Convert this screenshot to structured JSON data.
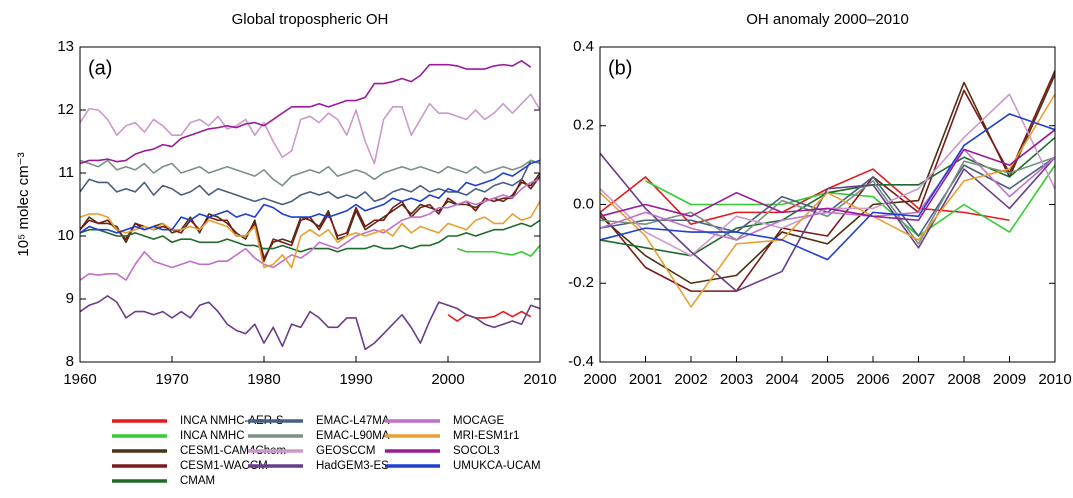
{
  "chart_data": [
    {
      "type": "line",
      "title": "Global tropospheric OH",
      "panel_label": "(a)",
      "y_label": "10⁵ molec cm⁻³",
      "x": [
        1960,
        1961,
        1962,
        1963,
        1964,
        1965,
        1966,
        1967,
        1968,
        1969,
        1970,
        1971,
        1972,
        1973,
        1974,
        1975,
        1976,
        1977,
        1978,
        1979,
        1980,
        1981,
        1982,
        1983,
        1984,
        1985,
        1986,
        1987,
        1988,
        1989,
        1990,
        1991,
        1992,
        1993,
        1994,
        1995,
        1996,
        1997,
        1998,
        1999,
        2000,
        2001,
        2002,
        2003,
        2004,
        2005,
        2006,
        2007,
        2008,
        2009,
        2010
      ],
      "xlim": [
        1960,
        2010
      ],
      "xticks": [
        1960,
        1970,
        1980,
        1990,
        2000,
        2010
      ],
      "ylim": [
        8,
        13
      ],
      "yticks": [
        8,
        9,
        10,
        11,
        12,
        13
      ],
      "series": [
        {
          "name": "INCA NMHC-AER-S",
          "color": "#e41a1c",
          "values": [
            null,
            null,
            null,
            null,
            null,
            null,
            null,
            null,
            null,
            null,
            null,
            null,
            null,
            null,
            null,
            null,
            null,
            null,
            null,
            null,
            null,
            null,
            null,
            null,
            null,
            null,
            null,
            null,
            null,
            null,
            null,
            null,
            null,
            null,
            null,
            null,
            null,
            null,
            null,
            null,
            8.75,
            8.65,
            8.75,
            8.7,
            8.7,
            8.72,
            8.8,
            8.72,
            8.8,
            8.72,
            null
          ]
        },
        {
          "name": "INCA NMHC",
          "color": "#33cc33",
          "values": [
            null,
            null,
            null,
            null,
            null,
            null,
            null,
            null,
            null,
            null,
            null,
            null,
            null,
            null,
            null,
            null,
            null,
            null,
            null,
            null,
            null,
            null,
            null,
            null,
            null,
            null,
            null,
            null,
            null,
            null,
            null,
            null,
            null,
            null,
            null,
            null,
            null,
            null,
            null,
            null,
            null,
            9.8,
            9.75,
            9.75,
            9.75,
            9.75,
            9.72,
            9.7,
            9.75,
            9.68,
            9.85
          ]
        },
        {
          "name": "CESM1-CAM4Chem",
          "color": "#4a3212",
          "values": [
            10.1,
            10.3,
            10.2,
            10.2,
            10.15,
            9.9,
            10.2,
            10.1,
            10.15,
            10.2,
            10.05,
            10.1,
            10.3,
            10.05,
            10.35,
            10.3,
            10.2,
            10.05,
            9.95,
            10.25,
            9.65,
            9.9,
            9.95,
            9.9,
            10.3,
            10.25,
            10.15,
            10.4,
            9.95,
            10.0,
            10.4,
            10.1,
            10.2,
            10.3,
            10.4,
            10.5,
            10.35,
            10.5,
            10.45,
            10.4,
            10.55,
            10.5,
            10.5,
            10.45,
            10.55,
            10.6,
            10.55,
            10.65,
            10.85,
            10.8,
            11.0
          ]
        },
        {
          "name": "CESM1-WACCM",
          "color": "#7a1a1a",
          "values": [
            10.1,
            10.25,
            10.2,
            10.25,
            10.1,
            9.95,
            10.2,
            10.15,
            10.1,
            10.15,
            10.1,
            10.05,
            10.25,
            10.1,
            10.3,
            10.25,
            10.25,
            10.0,
            10.0,
            10.2,
            9.6,
            9.95,
            9.9,
            9.85,
            10.25,
            10.3,
            10.1,
            10.35,
            10.0,
            10.05,
            10.45,
            10.15,
            10.25,
            10.25,
            10.45,
            10.55,
            10.3,
            10.45,
            10.5,
            10.35,
            10.6,
            10.5,
            10.55,
            10.4,
            10.6,
            10.55,
            10.6,
            10.6,
            10.9,
            10.75,
            10.95
          ]
        },
        {
          "name": "CMAM",
          "color": "#1e6b2a",
          "values": [
            10.05,
            10.1,
            10.1,
            10.05,
            10.0,
            10.0,
            10.05,
            10.0,
            9.95,
            10.0,
            9.9,
            9.95,
            9.95,
            9.9,
            9.9,
            9.9,
            9.95,
            9.9,
            9.85,
            9.85,
            9.8,
            9.8,
            9.85,
            9.8,
            9.75,
            9.8,
            9.8,
            9.8,
            9.75,
            9.8,
            9.8,
            9.8,
            9.85,
            9.8,
            9.8,
            9.85,
            9.8,
            9.85,
            9.85,
            9.9,
            10.0,
            10.0,
            10.05,
            10.0,
            10.05,
            10.1,
            10.1,
            10.15,
            10.2,
            10.15,
            10.25
          ]
        },
        {
          "name": "EMAC-L47MA",
          "color": "#4a5f80",
          "values": [
            10.7,
            10.9,
            10.85,
            10.85,
            10.7,
            10.75,
            10.7,
            10.85,
            10.65,
            10.8,
            10.75,
            10.65,
            10.7,
            10.8,
            10.65,
            10.75,
            10.7,
            10.65,
            10.6,
            10.55,
            10.6,
            10.55,
            10.5,
            10.55,
            10.65,
            10.7,
            10.65,
            10.7,
            10.6,
            10.65,
            10.6,
            10.7,
            10.55,
            10.6,
            10.7,
            10.75,
            10.7,
            10.8,
            10.7,
            10.75,
            10.7,
            10.7,
            10.65,
            10.75,
            10.7,
            10.8,
            10.85,
            10.8,
            10.9,
            11.2,
            11.15
          ]
        },
        {
          "name": "EMAC-L90MA",
          "color": "#7a9282",
          "values": [
            11.2,
            11.15,
            11.1,
            11.2,
            11.05,
            11.1,
            11.05,
            11.15,
            11.0,
            11.1,
            11.15,
            11.0,
            11.05,
            11.1,
            11.0,
            11.05,
            11.1,
            11.05,
            11.0,
            10.95,
            11.05,
            10.9,
            10.8,
            10.95,
            11.0,
            11.05,
            11.0,
            11.1,
            10.95,
            11.0,
            11.05,
            11.0,
            10.9,
            11.0,
            11.05,
            11.1,
            11.05,
            11.1,
            11.05,
            11.0,
            11.1,
            11.05,
            11.0,
            11.1,
            11.0,
            11.05,
            11.1,
            11.05,
            11.1,
            11.2,
            11.15
          ]
        },
        {
          "name": "GEOSCCM",
          "color": "#cc99cc",
          "values": [
            11.8,
            12.02,
            12.0,
            11.85,
            11.6,
            11.75,
            11.8,
            11.65,
            11.85,
            11.75,
            11.6,
            11.6,
            11.8,
            11.85,
            11.75,
            11.9,
            11.7,
            11.75,
            11.85,
            11.6,
            11.8,
            11.5,
            11.25,
            11.35,
            11.85,
            11.9,
            11.8,
            11.95,
            11.85,
            11.6,
            12.0,
            11.5,
            11.15,
            11.85,
            12.05,
            12.05,
            11.6,
            11.85,
            12.1,
            11.95,
            11.95,
            11.9,
            11.85,
            12.0,
            11.85,
            11.95,
            12.1,
            11.95,
            12.1,
            12.25,
            12.0
          ]
        },
        {
          "name": "HadGEM3-ES",
          "color": "#6a3d8a",
          "values": [
            8.8,
            8.9,
            8.95,
            9.05,
            8.95,
            8.7,
            8.8,
            8.8,
            8.75,
            8.8,
            8.7,
            8.8,
            8.7,
            8.9,
            8.95,
            8.8,
            8.6,
            8.5,
            8.45,
            8.6,
            8.3,
            8.55,
            8.25,
            8.6,
            8.55,
            8.8,
            8.7,
            8.55,
            8.55,
            8.7,
            8.7,
            8.2,
            8.3,
            8.45,
            8.6,
            8.75,
            8.55,
            8.3,
            8.65,
            8.95,
            8.9,
            8.85,
            8.75,
            8.7,
            8.6,
            8.55,
            8.6,
            8.65,
            8.6,
            8.9,
            8.85
          ]
        },
        {
          "name": "MOCAGE",
          "color": "#c070c8",
          "values": [
            9.3,
            9.4,
            9.38,
            9.4,
            9.4,
            9.3,
            9.55,
            9.75,
            9.6,
            9.55,
            9.5,
            9.55,
            9.6,
            9.55,
            9.55,
            9.6,
            9.6,
            9.7,
            9.8,
            9.65,
            9.55,
            9.5,
            9.6,
            9.7,
            9.65,
            9.75,
            9.9,
            9.85,
            9.8,
            9.9,
            10.0,
            10.05,
            10.1,
            10.05,
            10.15,
            10.25,
            10.3,
            10.3,
            10.35,
            10.45,
            10.45,
            10.5,
            10.55,
            10.5,
            10.55,
            10.6,
            10.65,
            10.6,
            10.75,
            10.85,
            10.9
          ]
        },
        {
          "name": "MRI-ESM1r1",
          "color": "#e8a030",
          "values": [
            10.3,
            10.35,
            10.35,
            10.3,
            10.1,
            10.05,
            10.1,
            10.15,
            10.1,
            10.2,
            10.1,
            10.1,
            10.15,
            10.1,
            10.25,
            10.2,
            10.15,
            10.0,
            10.0,
            10.15,
            9.5,
            9.55,
            9.7,
            9.5,
            10.0,
            10.1,
            10.0,
            10.1,
            9.9,
            10.0,
            10.05,
            10.0,
            10.05,
            10.1,
            10.0,
            10.2,
            10.05,
            10.15,
            10.1,
            10.05,
            10.2,
            10.15,
            10.1,
            10.25,
            10.3,
            10.2,
            10.2,
            10.35,
            10.25,
            10.3,
            10.55
          ]
        },
        {
          "name": "SOCOL3",
          "color": "#9a1a9a",
          "values": [
            11.15,
            11.2,
            11.2,
            11.22,
            11.18,
            11.2,
            11.3,
            11.35,
            11.38,
            11.45,
            11.42,
            11.55,
            11.6,
            11.65,
            11.7,
            11.72,
            11.75,
            11.72,
            11.78,
            11.8,
            11.75,
            11.85,
            11.95,
            12.05,
            12.05,
            12.05,
            12.1,
            12.05,
            12.1,
            12.15,
            12.15,
            12.2,
            12.42,
            12.42,
            12.45,
            12.5,
            12.45,
            12.55,
            12.72,
            12.72,
            12.72,
            12.7,
            12.65,
            12.65,
            12.65,
            12.7,
            12.72,
            12.7,
            12.78,
            12.68,
            null
          ]
        },
        {
          "name": "UMUKCA-UCAM",
          "color": "#1f3fd0",
          "values": [
            10.05,
            10.15,
            10.1,
            10.1,
            10.05,
            10.1,
            10.15,
            10.1,
            10.15,
            10.1,
            10.1,
            10.3,
            10.25,
            10.35,
            10.3,
            10.35,
            10.4,
            10.3,
            10.35,
            10.3,
            10.5,
            10.45,
            10.35,
            10.3,
            10.3,
            10.3,
            10.35,
            10.3,
            10.35,
            10.4,
            10.5,
            10.4,
            10.45,
            10.5,
            10.6,
            10.55,
            10.6,
            10.55,
            10.65,
            10.6,
            10.75,
            10.7,
            10.85,
            10.8,
            10.85,
            10.9,
            11.0,
            10.95,
            11.05,
            11.15,
            11.2
          ]
        }
      ]
    },
    {
      "type": "line",
      "title": "OH anomaly 2000–2010",
      "panel_label": "(b)",
      "x": [
        2000,
        2001,
        2002,
        2003,
        2004,
        2005,
        2006,
        2007,
        2008,
        2009,
        2010
      ],
      "xlim": [
        2000,
        2010
      ],
      "xticks": [
        2000,
        2001,
        2002,
        2003,
        2004,
        2005,
        2006,
        2007,
        2008,
        2009,
        2010
      ],
      "ylim": [
        -0.4,
        0.4
      ],
      "yticks": [
        {
          "value": -0.4,
          "label": "-0.4"
        },
        {
          "value": -0.2,
          "label": "-0.2"
        },
        {
          "value": 0,
          "label": "0.0"
        },
        0.2,
        0.4
      ],
      "series": [
        {
          "name": "INCA NMHC-AER-S",
          "color": "#e41a1c",
          "values": [
            -0.02,
            0.07,
            -0.05,
            -0.02,
            -0.02,
            0.04,
            0.09,
            -0.01,
            -0.02,
            -0.04,
            null
          ]
        },
        {
          "name": "INCA NMHC",
          "color": "#33cc33",
          "values": [
            null,
            0.06,
            0.0,
            0.0,
            0.0,
            0.03,
            0.02,
            -0.08,
            0.0,
            -0.07,
            0.1
          ]
        },
        {
          "name": "CESM1-CAM4Chem",
          "color": "#4a3212",
          "values": [
            -0.03,
            -0.13,
            -0.2,
            -0.18,
            -0.07,
            -0.1,
            0.0,
            0.01,
            0.31,
            0.07,
            0.33
          ]
        },
        {
          "name": "CESM1-WACCM",
          "color": "#7a1a1a",
          "values": [
            -0.02,
            -0.16,
            -0.22,
            -0.22,
            -0.06,
            -0.08,
            0.07,
            -0.02,
            0.29,
            0.08,
            0.34
          ]
        },
        {
          "name": "CMAM",
          "color": "#1e6b2a",
          "values": [
            -0.09,
            -0.11,
            -0.13,
            -0.06,
            -0.04,
            0.03,
            0.05,
            0.05,
            0.12,
            0.07,
            0.17
          ]
        },
        {
          "name": "EMAC-L47MA",
          "color": "#4a5f80",
          "values": [
            -0.06,
            -0.04,
            -0.04,
            -0.07,
            0.02,
            -0.02,
            0.07,
            -0.08,
            0.1,
            0.04,
            0.12
          ]
        },
        {
          "name": "EMAC-L90MA",
          "color": "#7a9282",
          "values": [
            -0.04,
            -0.05,
            -0.02,
            -0.09,
            0.01,
            -0.03,
            0.06,
            -0.1,
            0.11,
            0.08,
            0.12
          ]
        },
        {
          "name": "GEOSCCM",
          "color": "#cc99cc",
          "values": [
            0.04,
            -0.07,
            -0.13,
            -0.03,
            -0.06,
            -0.01,
            -0.01,
            0.04,
            0.17,
            0.28,
            0.04
          ]
        },
        {
          "name": "HadGEM3-ES",
          "color": "#6a3d8a",
          "values": [
            0.13,
            -0.01,
            -0.12,
            -0.22,
            -0.17,
            0.04,
            0.05,
            -0.11,
            0.09,
            -0.01,
            0.12
          ]
        },
        {
          "name": "MOCAGE",
          "color": "#c070c8",
          "values": [
            -0.06,
            -0.02,
            -0.06,
            -0.09,
            -0.04,
            -0.02,
            -0.03,
            -0.02,
            0.14,
            0.02,
            0.12
          ]
        },
        {
          "name": "MRI-ESM1r1",
          "color": "#e8a030",
          "values": [
            0.03,
            -0.08,
            -0.26,
            -0.1,
            -0.09,
            0.03,
            -0.03,
            -0.09,
            0.06,
            0.09,
            0.28
          ]
        },
        {
          "name": "SOCOL3",
          "color": "#9a1a9a",
          "values": [
            -0.03,
            0.0,
            -0.03,
            0.03,
            -0.02,
            -0.01,
            -0.03,
            -0.04,
            0.14,
            0.1,
            0.19
          ]
        },
        {
          "name": "UMUKCA-UCAM",
          "color": "#1f3fd0",
          "values": [
            -0.09,
            -0.06,
            -0.07,
            -0.07,
            -0.09,
            -0.14,
            -0.02,
            -0.03,
            0.15,
            0.23,
            0.19
          ]
        }
      ]
    }
  ]
}
